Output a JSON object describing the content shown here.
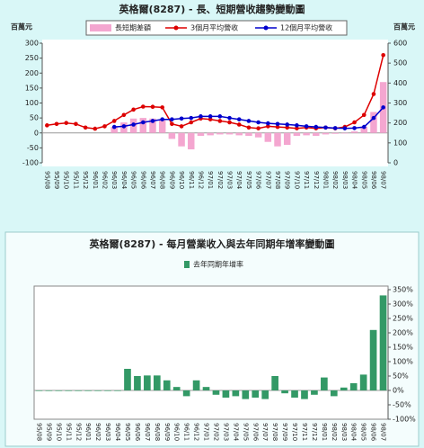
{
  "chart_data": [
    {
      "type": "combo",
      "title": "英格爾(8287) - 長、短期營收趨勢變動圖",
      "ylabel": "百萬元",
      "y2label": "百萬元",
      "categories": [
        "95/08",
        "95/09",
        "95/10",
        "95/11",
        "95/12",
        "96/01",
        "96/02",
        "96/03",
        "96/04",
        "96/05",
        "96/06",
        "96/07",
        "96/08",
        "96/09",
        "96/10",
        "96/11",
        "96/12",
        "97/01",
        "97/02",
        "97/03",
        "97/04",
        "97/05",
        "97/06",
        "97/07",
        "97/08",
        "97/09",
        "97/10",
        "97/11",
        "97/12",
        "98/01",
        "98/02",
        "98/03",
        "98/04",
        "98/05",
        "98/06",
        "98/07"
      ],
      "ylim": [
        -100,
        300
      ],
      "yticks": [
        -100,
        -50,
        0,
        50,
        100,
        150,
        200,
        250,
        300
      ],
      "y2lim": [
        0,
        600
      ],
      "y2ticks": [
        0,
        100,
        200,
        300,
        400,
        500,
        600
      ],
      "grid": false,
      "series": [
        {
          "name": "長短期差額",
          "type": "bar",
          "color": "#f4a6d0",
          "values": [
            null,
            null,
            null,
            null,
            null,
            null,
            null,
            20,
            35,
            48,
            50,
            48,
            42,
            -20,
            -45,
            -55,
            -10,
            -8,
            -5,
            -5,
            -8,
            -10,
            -15,
            -30,
            -45,
            -40,
            -10,
            -8,
            -10,
            -5,
            -3,
            -2,
            5,
            20,
            70,
            170
          ]
        },
        {
          "name": "3個月平均營收",
          "type": "line",
          "axis": "y2",
          "color": "#dd0000",
          "values": [
            188,
            195,
            200,
            195,
            177,
            171,
            183,
            210,
            240,
            267,
            282,
            281,
            278,
            195,
            183,
            203,
            222,
            218,
            210,
            203,
            192,
            177,
            173,
            183,
            180,
            177,
            173,
            177,
            173,
            177,
            173,
            180,
            203,
            240,
            345,
            540
          ]
        },
        {
          "name": "12個月平均營收",
          "type": "line",
          "axis": "y2",
          "color": "#0000cc",
          "values": [
            null,
            null,
            null,
            null,
            null,
            null,
            null,
            180,
            183,
            192,
            203,
            210,
            218,
            218,
            222,
            225,
            233,
            233,
            233,
            225,
            218,
            210,
            203,
            198,
            195,
            192,
            188,
            183,
            180,
            177,
            174,
            173,
            174,
            180,
            225,
            278
          ]
        }
      ]
    },
    {
      "type": "bar",
      "title": "英格爾(8287) - 每月營業收入與去年同期年增率變動圖",
      "yaxis_position": "right",
      "categories": [
        "95/08",
        "95/09",
        "95/10",
        "95/11",
        "95/12",
        "96/01",
        "96/02",
        "96/03",
        "96/04",
        "96/05",
        "96/06",
        "96/07",
        "96/08",
        "96/09",
        "96/10",
        "96/11",
        "96/12",
        "97/01",
        "97/02",
        "97/03",
        "97/04",
        "97/05",
        "97/06",
        "97/07",
        "97/08",
        "97/09",
        "97/10",
        "97/11",
        "97/12",
        "98/01",
        "98/02",
        "98/03",
        "98/04",
        "98/05",
        "98/06",
        "98/07"
      ],
      "ylim": [
        -100,
        350
      ],
      "yticks": [
        {
          "value": -100,
          "label": "-100%"
        },
        {
          "value": -50,
          "label": "-50%"
        },
        {
          "value": 0,
          "label": "0%"
        },
        {
          "value": 50,
          "label": "50%"
        },
        {
          "value": 100,
          "label": "100%"
        },
        {
          "value": 150,
          "label": "150%"
        },
        {
          "value": 200,
          "label": "200%"
        },
        {
          "value": 250,
          "label": "250%"
        },
        {
          "value": 300,
          "label": "300%"
        },
        {
          "value": 350,
          "label": "350%"
        }
      ],
      "grid": false,
      "series": [
        {
          "name": "去年同期年增率",
          "type": "bar",
          "color": "#339966",
          "values": [
            0,
            0,
            0,
            0,
            0,
            0,
            0,
            0,
            0,
            75,
            50,
            52,
            52,
            35,
            12,
            -20,
            35,
            12,
            -15,
            -25,
            -20,
            -30,
            -25,
            -30,
            50,
            -10,
            -25,
            -30,
            -15,
            45,
            -20,
            10,
            25,
            55,
            210,
            330
          ]
        }
      ]
    }
  ]
}
